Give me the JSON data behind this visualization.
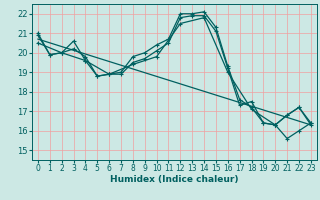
{
  "xlabel": "Humidex (Indice chaleur)",
  "background_color": "#cce8e4",
  "grid_color": "#f0a0a0",
  "line_color": "#006060",
  "xlim": [
    -0.5,
    23.5
  ],
  "ylim": [
    14.5,
    22.5
  ],
  "xticks": [
    0,
    1,
    2,
    3,
    4,
    5,
    6,
    7,
    8,
    9,
    10,
    11,
    12,
    13,
    14,
    15,
    16,
    17,
    18,
    19,
    20,
    21,
    22,
    23
  ],
  "yticks": [
    15,
    16,
    17,
    18,
    19,
    20,
    21,
    22
  ],
  "lines": [
    {
      "x": [
        0,
        1,
        2,
        3,
        4,
        5,
        6,
        7,
        8,
        9,
        10,
        11,
        12,
        13,
        14,
        15,
        16,
        17,
        18,
        19,
        20,
        21,
        22,
        23
      ],
      "y": [
        21.0,
        19.9,
        20.0,
        20.6,
        19.6,
        18.8,
        18.9,
        19.0,
        19.8,
        20.0,
        20.4,
        20.7,
        22.0,
        22.0,
        22.1,
        21.3,
        19.3,
        17.6,
        17.2,
        16.4,
        16.3,
        15.6,
        16.0,
        16.4
      ],
      "has_markers": true
    },
    {
      "x": [
        0,
        1,
        2,
        3,
        4,
        5,
        6,
        7,
        8,
        9,
        10,
        11,
        12,
        13,
        14,
        15,
        16,
        17,
        18,
        19,
        20,
        21,
        22,
        23
      ],
      "y": [
        20.9,
        19.9,
        20.0,
        20.2,
        19.8,
        18.8,
        18.9,
        18.9,
        19.5,
        19.7,
        20.1,
        20.5,
        21.8,
        21.9,
        21.9,
        21.1,
        19.2,
        17.3,
        17.5,
        16.4,
        16.3,
        16.8,
        17.2,
        16.4
      ],
      "has_markers": true
    },
    {
      "x": [
        0,
        23
      ],
      "y": [
        20.7,
        16.3
      ],
      "has_markers": false
    },
    {
      "x": [
        0,
        2,
        4,
        6,
        8,
        10,
        12,
        14,
        16,
        18,
        20,
        21,
        22,
        23
      ],
      "y": [
        20.5,
        20.0,
        19.6,
        18.9,
        19.4,
        19.8,
        21.5,
        21.8,
        19.0,
        17.1,
        16.3,
        16.8,
        17.2,
        16.3
      ],
      "has_markers": true
    }
  ],
  "markersize": 3,
  "linewidth": 0.9
}
